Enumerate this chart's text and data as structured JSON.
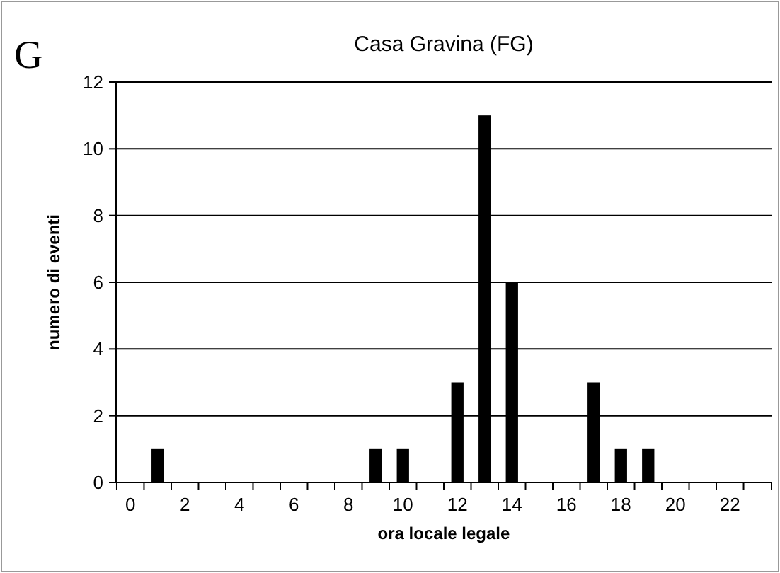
{
  "chart_data": {
    "type": "bar",
    "title": "Casa Gravina (FG)",
    "xlabel": "ora locale legale",
    "ylabel": "numero di eventi",
    "annotations": [
      "G"
    ],
    "categories": [
      "0",
      null,
      "2",
      null,
      "4",
      null,
      "6",
      null,
      "8",
      null,
      "10",
      null,
      "12",
      null,
      "14",
      null,
      "16",
      null,
      "18",
      null,
      "20",
      null,
      "22",
      null
    ],
    "values": [
      0,
      1,
      0,
      0,
      0,
      0,
      0,
      0,
      0,
      1,
      1,
      0,
      3,
      11,
      6,
      0,
      0,
      3,
      1,
      1,
      0,
      0,
      0,
      0
    ],
    "color": "#000000",
    "ylim": [
      0,
      12
    ],
    "yticks": [
      0,
      2,
      4,
      6,
      8,
      10,
      12
    ],
    "grid": "y"
  }
}
